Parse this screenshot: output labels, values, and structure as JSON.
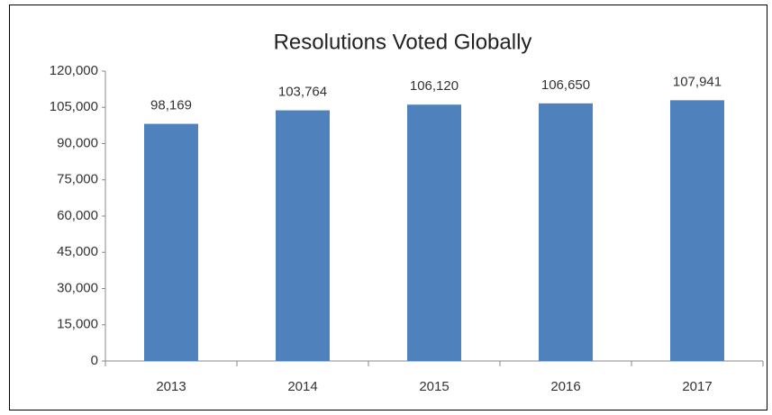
{
  "chart_data": {
    "type": "bar",
    "title": "Resolutions Voted Globally",
    "categories": [
      "2013",
      "2014",
      "2015",
      "2016",
      "2017"
    ],
    "values": [
      98169,
      103764,
      106120,
      106650,
      107941
    ],
    "value_labels": [
      "98,169",
      "103,764",
      "106,120",
      "106,650",
      "107,941"
    ],
    "color": "#4f81bd",
    "ylim": [
      0,
      120000
    ],
    "yticks": [
      0,
      {
        "value": 15000,
        "label": "15,000"
      },
      {
        "value": 30000,
        "label": "30,000"
      },
      {
        "value": 45000,
        "label": "45,000"
      },
      {
        "value": 60000,
        "label": "60,000"
      },
      {
        "value": 75000,
        "label": "75,000"
      },
      {
        "value": 90000,
        "label": "90,000"
      },
      {
        "value": 105000,
        "label": "105,000"
      },
      {
        "value": 120000,
        "label": "120,000"
      }
    ],
    "grid": false
  }
}
